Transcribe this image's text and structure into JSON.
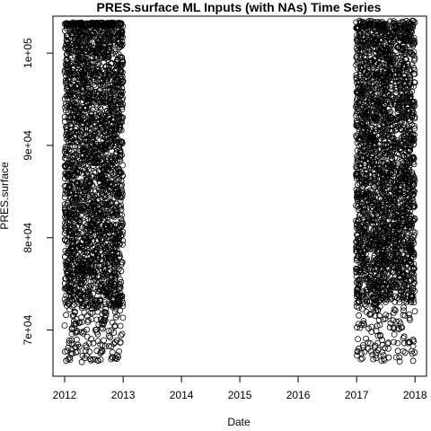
{
  "chart_data": {
    "type": "scatter",
    "title": "PRES.surface ML Inputs (with NAs) Time Series",
    "xlabel": "Date",
    "ylabel": "PRES.surface",
    "x_ticks": [
      "2012-01-01",
      "2013-01-01",
      "2014-01-01",
      "2015-01-01",
      "2016-01-01",
      "2017-01-01",
      "2018-01-01"
    ],
    "x_tick_labels": [
      "2012",
      "2013",
      "2014",
      "2015",
      "2016",
      "2017",
      "2018"
    ],
    "y_ticks": [
      70000,
      80000,
      90000,
      100000
    ],
    "y_tick_labels": [
      "7e+04",
      "8e+04",
      "9e+04",
      "1e+05"
    ],
    "xlim": [
      "2011-10-20",
      "2018-03-14"
    ],
    "ylim": [
      65000,
      104000
    ],
    "grid": false,
    "legend": "none",
    "marker": "open-circle",
    "point_color": "#000000",
    "series": [
      {
        "x_range": [
          "2012-01-01",
          "2012-12-31"
        ],
        "y_dense_range": [
          72500,
          103000
        ],
        "y_min": 66500,
        "y_max": 103300
      },
      {
        "x_range": [
          "2016-12-28",
          "2017-12-31"
        ],
        "y_dense_range": [
          73000,
          102500
        ],
        "y_min": 66500,
        "y_max": 103500
      }
    ]
  }
}
